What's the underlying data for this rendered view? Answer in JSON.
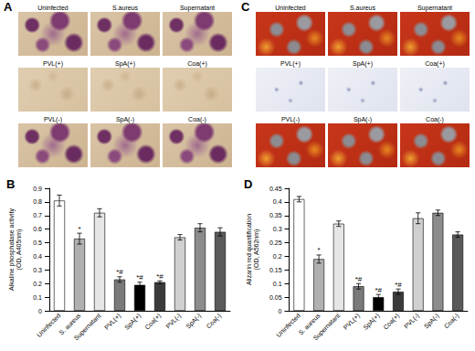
{
  "image_panels": [
    {
      "label": "A",
      "cells": [
        "Uninfected",
        "S.aureus",
        "Supernatant",
        "PVL(+)",
        "SpA(+)",
        "Coa(+)",
        "PVL(-)",
        "SpA(-)",
        "Coa(-)"
      ]
    },
    {
      "label": "C",
      "cells": [
        "Uninfected",
        "S.aureus",
        "Supernatant",
        "PVL(+)",
        "SpA(+)",
        "Coa(+)",
        "PVL(-)",
        "SpA(-)",
        "Coa(-)"
      ]
    }
  ],
  "chart_data": [
    {
      "type": "bar",
      "title": "B",
      "ylabel": "Alkaline phosphatase activity\n(OD, A405nm)",
      "categories": [
        "Uninfected",
        "S. aureus",
        "Supernatant",
        "PVL(+)",
        "SpA(+)",
        "Coa(+)",
        "PVL(-)",
        "SpA(-)",
        "Coa(-)"
      ],
      "values": [
        0.81,
        0.53,
        0.72,
        0.23,
        0.19,
        0.21,
        0.54,
        0.61,
        0.58
      ],
      "errors": [
        0.04,
        0.04,
        0.03,
        0.02,
        0.02,
        0.01,
        0.02,
        0.03,
        0.03
      ],
      "annotations": [
        null,
        "*",
        null,
        "*#",
        "*#",
        "*#",
        null,
        null,
        null
      ],
      "colors": [
        "#ffffff",
        "#b0b0b0",
        "#e6e6e6",
        "#7a7a7a",
        "#000000",
        "#3a3a3a",
        "#d0d0d0",
        "#8c8c8c",
        "#5a5a5a"
      ],
      "ylim": [
        0,
        0.9
      ],
      "yticks": [
        0,
        0.1,
        0.2,
        0.3,
        0.4,
        0.5,
        0.6,
        0.7,
        0.8,
        0.9
      ],
      "grid": false
    },
    {
      "type": "bar",
      "title": "D",
      "ylabel": "Alizarin red quantification\n(OD, A562nm)",
      "categories": [
        "Uninfected",
        "S. aureus",
        "Supernatant",
        "PVL(+)",
        "SpA(+)",
        "Coa(+)",
        "PVL(-)",
        "SpA(-)",
        "Coa(-)"
      ],
      "values": [
        0.41,
        0.19,
        0.32,
        0.09,
        0.05,
        0.07,
        0.34,
        0.36,
        0.28
      ],
      "errors": [
        0.01,
        0.015,
        0.01,
        0.01,
        0.01,
        0.01,
        0.02,
        0.01,
        0.01
      ],
      "annotations": [
        null,
        "*",
        null,
        "*#",
        "*#",
        "*#",
        null,
        null,
        null
      ],
      "colors": [
        "#ffffff",
        "#b0b0b0",
        "#e6e6e6",
        "#7a7a7a",
        "#000000",
        "#3a3a3a",
        "#d0d0d0",
        "#8c8c8c",
        "#5a5a5a"
      ],
      "ylim": [
        0,
        0.45
      ],
      "yticks": [
        0,
        0.05,
        0.1,
        0.15,
        0.2,
        0.25,
        0.3,
        0.35,
        0.4,
        0.45
      ],
      "grid": false
    }
  ]
}
